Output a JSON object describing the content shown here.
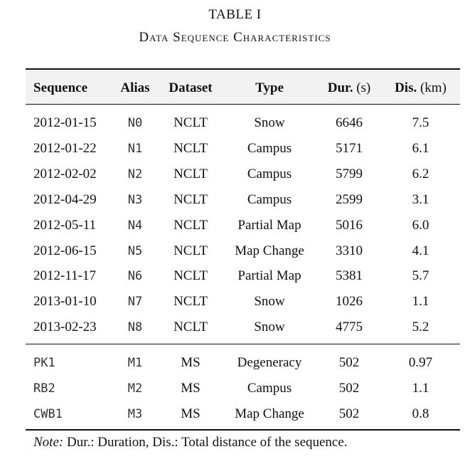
{
  "title": "TABLE I",
  "caption": "Data Sequence Characteristics",
  "columns": {
    "sequence": "Sequence",
    "alias": "Alias",
    "dataset": "Dataset",
    "type": "Type",
    "duration": "Dur.",
    "duration_unit": "(s)",
    "distance": "Dis.",
    "distance_unit": "(km)"
  },
  "group_nclt": [
    {
      "sequence": "2012-01-15",
      "alias": "N0",
      "dataset": "NCLT",
      "type": "Snow",
      "duration": "6646",
      "distance": "7.5"
    },
    {
      "sequence": "2012-01-22",
      "alias": "N1",
      "dataset": "NCLT",
      "type": "Campus",
      "duration": "5171",
      "distance": "6.1"
    },
    {
      "sequence": "2012-02-02",
      "alias": "N2",
      "dataset": "NCLT",
      "type": "Campus",
      "duration": "5799",
      "distance": "6.2"
    },
    {
      "sequence": "2012-04-29",
      "alias": "N3",
      "dataset": "NCLT",
      "type": "Campus",
      "duration": "2599",
      "distance": "3.1"
    },
    {
      "sequence": "2012-05-11",
      "alias": "N4",
      "dataset": "NCLT",
      "type": "Partial Map",
      "duration": "5016",
      "distance": "6.0"
    },
    {
      "sequence": "2012-06-15",
      "alias": "N5",
      "dataset": "NCLT",
      "type": "Map Change",
      "duration": "3310",
      "distance": "4.1"
    },
    {
      "sequence": "2012-11-17",
      "alias": "N6",
      "dataset": "NCLT",
      "type": "Partial Map",
      "duration": "5381",
      "distance": "5.7"
    },
    {
      "sequence": "2013-01-10",
      "alias": "N7",
      "dataset": "NCLT",
      "type": "Snow",
      "duration": "1026",
      "distance": "1.1"
    },
    {
      "sequence": "2013-02-23",
      "alias": "N8",
      "dataset": "NCLT",
      "type": "Snow",
      "duration": "4775",
      "distance": "5.2"
    }
  ],
  "group_ms": [
    {
      "sequence": "PK1",
      "alias": "M1",
      "dataset": "MS",
      "type": "Degeneracy",
      "duration": "502",
      "distance": "0.97"
    },
    {
      "sequence": "RB2",
      "alias": "M2",
      "dataset": "MS",
      "type": "Campus",
      "duration": "502",
      "distance": "1.1"
    },
    {
      "sequence": "CWB1",
      "alias": "M3",
      "dataset": "MS",
      "type": "Map Change",
      "duration": "502",
      "distance": "0.8"
    }
  ],
  "note": {
    "label": "Note:",
    "text": "Dur.: Duration, Dis.: Total distance of the sequence."
  }
}
